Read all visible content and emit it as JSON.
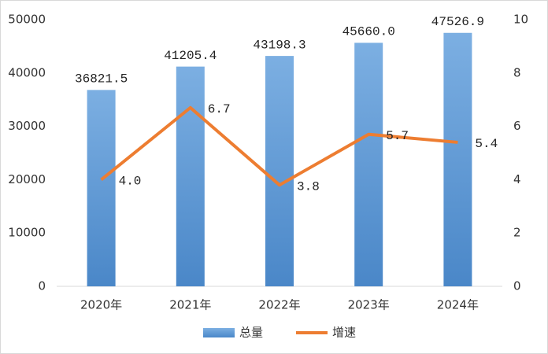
{
  "chart_data": {
    "type": "bar-line",
    "categories": [
      "2020年",
      "2021年",
      "2022年",
      "2023年",
      "2024年"
    ],
    "series": [
      {
        "name": "总量",
        "type": "bar",
        "color": "#5b9bd5",
        "values": [
          36821.5,
          41205.4,
          43198.3,
          45660.0,
          47526.9
        ],
        "value_labels": [
          "36821.5",
          "41205.4",
          "43198.3",
          "45660.0",
          "47526.9"
        ]
      },
      {
        "name": "增速",
        "type": "line",
        "axis": "y2",
        "color": "#ed7d31",
        "values": [
          4.0,
          6.7,
          3.8,
          5.7,
          5.4
        ],
        "value_labels": [
          "4.0",
          "6.7",
          "3.8",
          "5.7",
          "5.4"
        ]
      }
    ],
    "ylim": [
      0,
      50000
    ],
    "yticks": [
      0,
      10000,
      20000,
      30000,
      40000,
      50000
    ],
    "y2lim": [
      0,
      10
    ],
    "y2ticks": [
      0,
      2,
      4,
      6,
      8,
      10
    ],
    "legend": "bottom"
  }
}
